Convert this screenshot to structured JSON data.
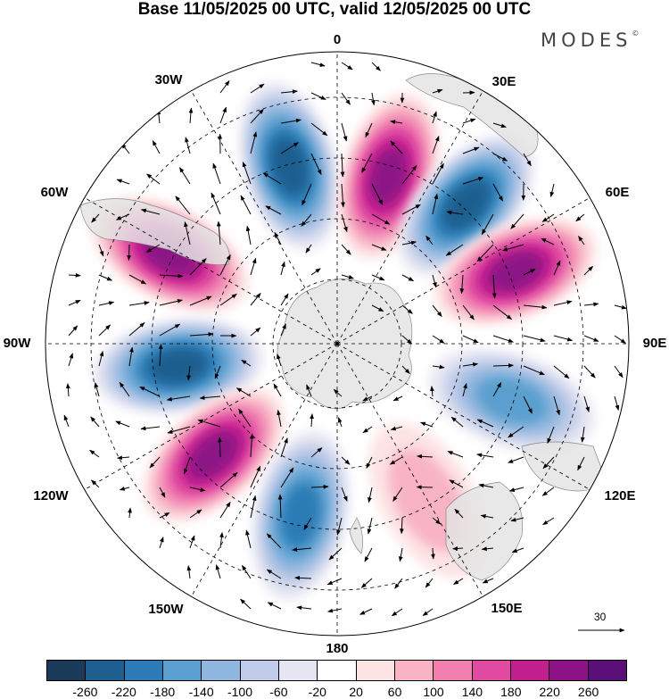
{
  "title": "Base 11/05/2025 00 UTC, valid 12/05/2025 00 UTC",
  "brand": "MODES",
  "brand_mark": "©",
  "lon_labels": {
    "l0": "0",
    "l30e": "30E",
    "l60e": "60E",
    "l90e": "90E",
    "l120e": "120E",
    "l150e": "150E",
    "l180": "180",
    "l150w": "150W",
    "l120w": "120W",
    "l90w": "90W",
    "l60w": "60W",
    "l30w": "30W"
  },
  "reference_vector": "30",
  "colorbar": {
    "colors": [
      "#1b3b5a",
      "#1f5f8f",
      "#2c7bb6",
      "#5a9fcf",
      "#8fb6de",
      "#bfcbe8",
      "#e6e6f2",
      "#ffffff",
      "#fde3e3",
      "#f8b4c4",
      "#f07fb0",
      "#e04aa0",
      "#c21f8e",
      "#8c1285",
      "#5a0f78"
    ],
    "ticks": [
      "-260",
      "-220",
      "-180",
      "-140",
      "-100",
      "-60",
      "-20",
      "20",
      "60",
      "100",
      "140",
      "180",
      "220",
      "260"
    ]
  },
  "anomalies": [
    {
      "lon": -15,
      "r": 0.63,
      "value": -240
    },
    {
      "lon": 17,
      "r": 0.6,
      "value": 240
    },
    {
      "lon": 43,
      "r": 0.65,
      "value": -230
    },
    {
      "lon": 68,
      "r": 0.66,
      "value": 230
    },
    {
      "lon": 108,
      "r": 0.63,
      "value": -170
    },
    {
      "lon": -62,
      "r": 0.65,
      "value": 250
    },
    {
      "lon": -98,
      "r": 0.55,
      "value": -220
    },
    {
      "lon": -132,
      "r": 0.57,
      "value": 240
    },
    {
      "lon": -168,
      "r": 0.6,
      "value": -190
    },
    {
      "lon": 150,
      "r": 0.62,
      "value": 90
    }
  ]
}
